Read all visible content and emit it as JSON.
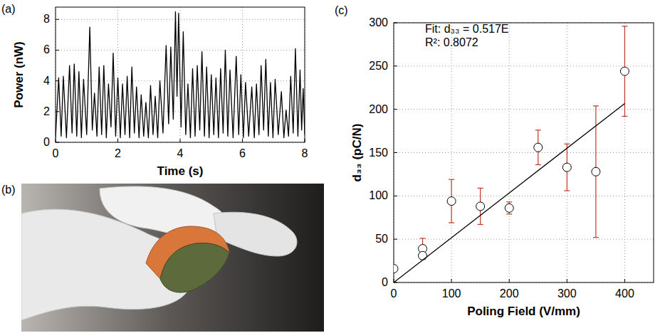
{
  "chart_data": [
    {
      "panel": "(a)",
      "type": "line",
      "x_label": "Time (s)",
      "y_label": "Power (nW)",
      "x": [
        0,
        0.1,
        0.18,
        0.25,
        0.35,
        0.45,
        0.53,
        0.6,
        0.68,
        0.75,
        0.83,
        0.9,
        1.0,
        1.1,
        1.18,
        1.25,
        1.33,
        1.4,
        1.48,
        1.55,
        1.63,
        1.7,
        1.78,
        1.85,
        1.93,
        2.0,
        2.08,
        2.15,
        2.23,
        2.3,
        2.38,
        2.45,
        2.53,
        2.6,
        2.68,
        2.75,
        2.83,
        2.9,
        2.98,
        3.05,
        3.13,
        3.2,
        3.28,
        3.35,
        3.45,
        3.55,
        3.63,
        3.7,
        3.78,
        3.85,
        3.9,
        3.95,
        4.03,
        4.1,
        4.18,
        4.25,
        4.33,
        4.4,
        4.48,
        4.55,
        4.63,
        4.7,
        4.78,
        4.85,
        4.93,
        5.0,
        5.08,
        5.15,
        5.23,
        5.3,
        5.38,
        5.45,
        5.53,
        5.6,
        5.7,
        5.8,
        5.88,
        5.95,
        6.03,
        6.1,
        6.2,
        6.3,
        6.38,
        6.45,
        6.53,
        6.6,
        6.68,
        6.75,
        6.83,
        6.9,
        6.98,
        7.05,
        7.15,
        7.25,
        7.33,
        7.4,
        7.48,
        7.55,
        7.63,
        7.7,
        7.78,
        7.85,
        7.9,
        7.95,
        8.0
      ],
      "series": [
        {
          "color": "#000000",
          "line_style": "solid",
          "values": [
            0.3,
            4.2,
            0.4,
            4.3,
            0.3,
            5.0,
            0.6,
            5.1,
            0.4,
            4.6,
            0.3,
            4.1,
            0.5,
            7.5,
            0.8,
            3.2,
            0.4,
            4.9,
            0.5,
            5.0,
            0.3,
            3.8,
            1.0,
            5.8,
            0.4,
            4.2,
            0.3,
            3.8,
            0.5,
            4.3,
            0.3,
            4.9,
            0.6,
            3.6,
            0.3,
            3.1,
            0.4,
            2.6,
            0.3,
            3.7,
            0.5,
            3.0,
            0.3,
            4.0,
            0.6,
            6.3,
            1.2,
            6.2,
            1.5,
            8.5,
            3.0,
            8.4,
            1.0,
            7.2,
            0.5,
            3.8,
            0.3,
            4.8,
            0.4,
            5.0,
            0.8,
            5.9,
            0.4,
            4.9,
            0.3,
            4.4,
            0.5,
            4.2,
            0.3,
            4.8,
            0.6,
            6.0,
            0.4,
            4.7,
            0.3,
            5.6,
            0.5,
            4.4,
            0.3,
            3.9,
            0.4,
            3.6,
            0.3,
            3.8,
            0.5,
            5.0,
            0.8,
            5.4,
            0.4,
            3.9,
            0.3,
            4.1,
            0.5,
            3.3,
            0.3,
            2.1,
            0.4,
            4.3,
            0.6,
            6.1,
            0.4,
            4.7,
            0.8,
            3.5,
            0.5
          ]
        }
      ],
      "xlim": [
        0,
        8
      ],
      "xticks": [
        0,
        2,
        4,
        6,
        8
      ],
      "ylim": [
        0,
        8.8
      ],
      "yticks": [
        0,
        2,
        4,
        6,
        8
      ],
      "grid": true
    },
    {
      "panel": "(c)",
      "type": "scatter",
      "x_label": "Poling Field (V/mm)",
      "y_label": "d₃₃ (pC/N)",
      "annotations": [
        "Fit: d₃₃ = 0.517E",
        "R²: 0.8072"
      ],
      "series": [
        {
          "type": "scatter",
          "marker": "open-circle",
          "color": "#000000",
          "x": [
            0,
            50,
            50,
            100,
            150,
            200,
            250,
            300,
            350,
            400
          ],
          "values": [
            16,
            39,
            31,
            94,
            88,
            86,
            156,
            133,
            128,
            244
          ],
          "errors": [
            null,
            12,
            null,
            25,
            21,
            7,
            20,
            27,
            76,
            52
          ]
        },
        {
          "type": "line",
          "line_style": "solid",
          "color": "#000000",
          "x": [
            0,
            400
          ],
          "values": [
            0,
            206.8
          ]
        }
      ],
      "xlim": [
        0,
        450
      ],
      "xticks": [
        0,
        100,
        200,
        300,
        400
      ],
      "ylim": [
        0,
        300
      ],
      "yticks": [
        0,
        50,
        100,
        150,
        200,
        250,
        300
      ],
      "grid": true
    }
  ],
  "photo": {
    "panel": "(b)"
  }
}
